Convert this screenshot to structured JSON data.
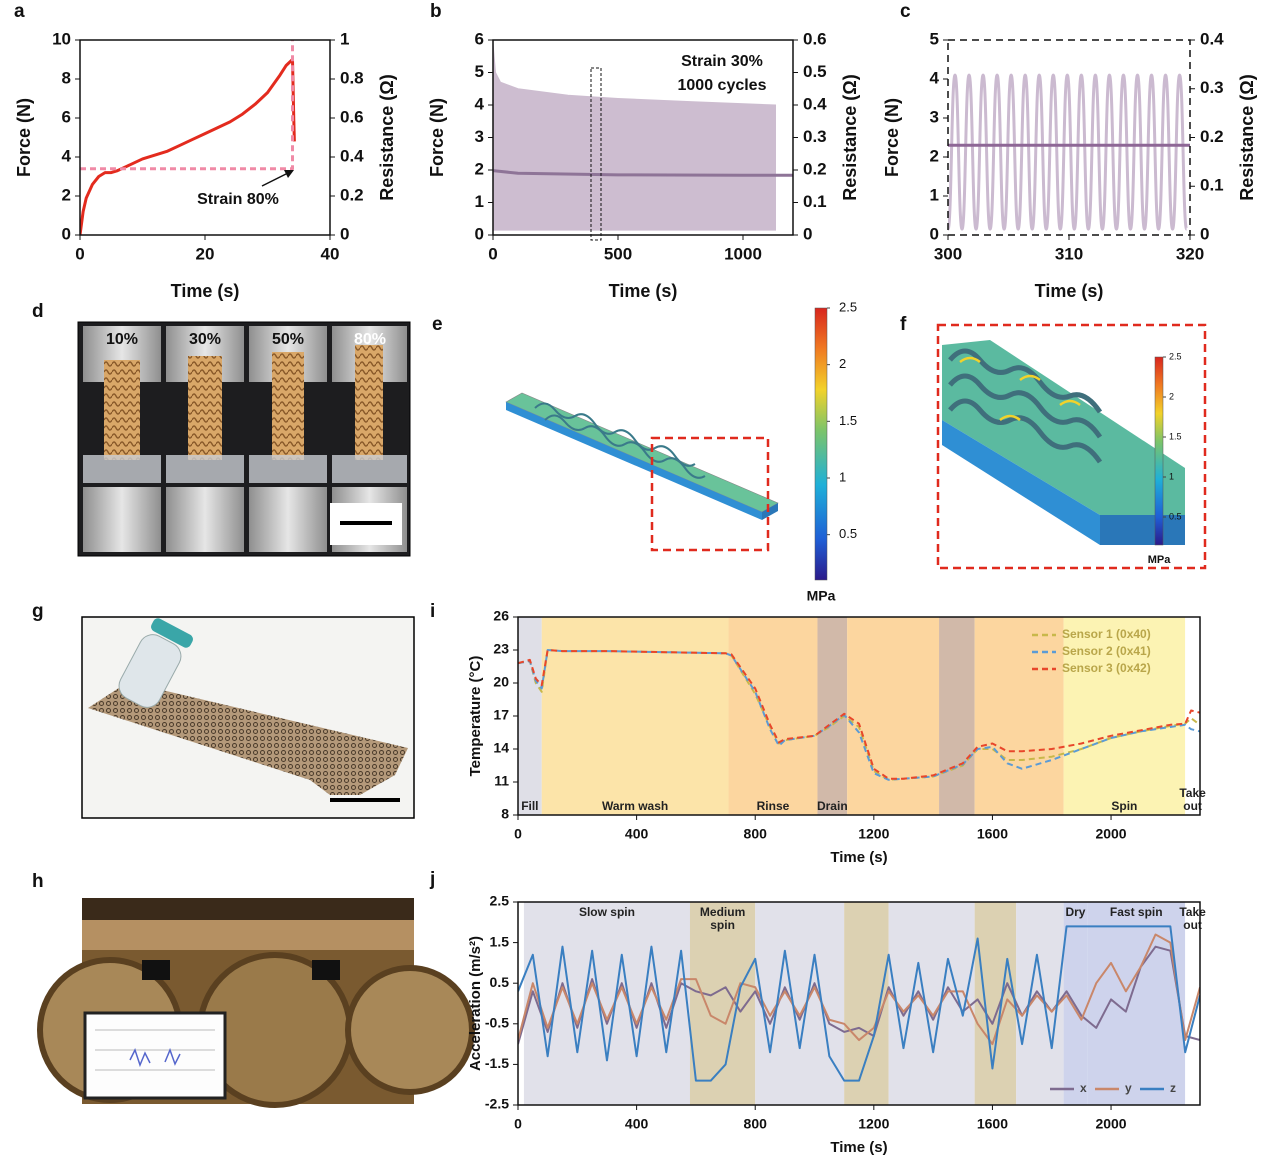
{
  "chart_data": [
    {
      "type": "line",
      "panel": "a",
      "xlabel": "Time (s)",
      "ylabel": "Force (N)",
      "y2label": "Resistance (Ω)",
      "xlim": [
        0,
        40
      ],
      "xticks": [
        0,
        20,
        40
      ],
      "ylim": [
        0,
        10
      ],
      "yticks": [
        0,
        2,
        4,
        6,
        8,
        10
      ],
      "y2lim": [
        0,
        1
      ],
      "y2ticks": [
        0,
        0.2,
        0.4,
        0.6,
        0.8,
        1
      ],
      "series": [
        {
          "color": "#e32b1e",
          "style": "solid",
          "x": [
            0,
            0.5,
            1,
            2,
            3,
            4,
            5,
            6,
            8,
            10,
            12,
            14,
            16,
            18,
            20,
            22,
            24,
            26,
            28,
            30,
            32,
            33,
            34,
            34.2,
            34.3
          ],
          "values": [
            0,
            1.2,
            1.9,
            2.6,
            3.0,
            3.2,
            3.2,
            3.3,
            3.6,
            3.9,
            4.1,
            4.3,
            4.6,
            4.9,
            5.2,
            5.5,
            5.8,
            6.2,
            6.7,
            7.3,
            8.2,
            8.7,
            9.0,
            6.0,
            4.8
          ]
        },
        {
          "color": "#f08aa6",
          "style": "dashed",
          "axis": "y2",
          "x": [
            0,
            34,
            34
          ],
          "values": [
            0.34,
            0.34,
            1.0
          ]
        }
      ],
      "annotations": [
        "Strain 80%"
      ]
    },
    {
      "type": "line",
      "panel": "b",
      "xlabel": "Time (s)",
      "ylabel": "Force (N)",
      "y2label": "Resistance (Ω)",
      "xlim": [
        0,
        1200
      ],
      "xticks": [
        0,
        500,
        1000
      ],
      "ylim": [
        0,
        6
      ],
      "yticks": [
        0,
        1,
        2,
        3,
        4,
        5,
        6
      ],
      "y2lim": [
        0,
        0.6
      ],
      "y2ticks": [
        0,
        0.1,
        0.2,
        0.3,
        0.4,
        0.5,
        0.6
      ],
      "series": [
        {
          "color": "#cdbdd0",
          "style": "band",
          "x": [
            0,
            10,
            30,
            100,
            300,
            500,
            800,
            1130
          ],
          "values": [
            5.9,
            5.0,
            4.7,
            4.5,
            4.3,
            4.2,
            4.1,
            4.0
          ],
          "lower": [
            0.15,
            0.15,
            0.15,
            0.15,
            0.15,
            0.15,
            0.15,
            0.15
          ]
        },
        {
          "color": "#8e7497",
          "style": "solid",
          "axis": "y2",
          "x": [
            0,
            100,
            500,
            1000,
            1200
          ],
          "values": [
            0.198,
            0.19,
            0.185,
            0.184,
            0.184
          ]
        }
      ],
      "annotations": [
        "Strain 30%",
        "1000 cycles"
      ]
    },
    {
      "type": "line",
      "panel": "c",
      "xlabel": "Time (s)",
      "ylabel": "Force (N)",
      "y2label": "Resistance (Ω)",
      "xlim": [
        300,
        320
      ],
      "xticks": [
        300,
        310,
        320
      ],
      "ylim": [
        0,
        5
      ],
      "yticks": [
        0,
        1,
        2,
        3,
        4,
        5
      ],
      "y2lim": [
        0,
        0.4
      ],
      "y2ticks": [
        0,
        0.1,
        0.2,
        0.3,
        0.4
      ],
      "series": [
        {
          "color": "#cbbad0",
          "style": "smooth",
          "x": [
            300,
            300.58,
            301.16,
            301.74,
            302.32,
            302.9,
            303.48,
            304.06,
            304.64,
            305.22,
            305.8,
            306.38,
            306.96,
            307.54,
            308.12,
            308.7,
            309.28,
            309.86,
            310.44,
            311.02,
            311.6,
            312.18,
            312.76,
            313.34,
            313.92,
            314.5,
            315.08,
            315.66,
            316.24,
            316.82,
            317.4,
            317.98,
            318.56,
            319.14,
            319.72
          ],
          "values": [
            0.15,
            4.1,
            0.15,
            4.1,
            0.15,
            4.1,
            0.15,
            4.1,
            0.15,
            4.1,
            0.15,
            4.1,
            0.15,
            4.1,
            0.15,
            4.1,
            0.15,
            4.1,
            0.15,
            4.1,
            0.15,
            4.1,
            0.15,
            4.1,
            0.15,
            4.1,
            0.15,
            4.1,
            0.15,
            4.1,
            0.15,
            4.1,
            0.15,
            4.1,
            0.15
          ]
        },
        {
          "color": "#8e6796",
          "style": "solid",
          "axis": "y2",
          "x": [
            300,
            320
          ],
          "values": [
            0.184,
            0.184
          ]
        }
      ]
    },
    {
      "type": "line",
      "panel": "i",
      "xlabel": "Time (s)",
      "ylabel": "Temperature (°C)",
      "xlim": [
        0,
        2300
      ],
      "xticks": [
        0,
        400,
        800,
        1200,
        1600,
        2000
      ],
      "ylim": [
        8,
        26
      ],
      "yticks": [
        8,
        11,
        14,
        17,
        20,
        23,
        26
      ],
      "legend": "upper right",
      "regions": [
        {
          "start": 0,
          "end": 80,
          "color": "#d9d9e3",
          "label": "Fill"
        },
        {
          "start": 80,
          "end": 710,
          "color": "#fcdf9a",
          "label": "Warm wash"
        },
        {
          "start": 710,
          "end": 1010,
          "color": "#fbcf8e",
          "label": "Rinse"
        },
        {
          "start": 1010,
          "end": 1110,
          "color": "#c9ad9a",
          "label": "Drain"
        },
        {
          "start": 1110,
          "end": 1420,
          "color": "#fbcf8e"
        },
        {
          "start": 1420,
          "end": 1540,
          "color": "#c9ad9a"
        },
        {
          "start": 1540,
          "end": 1840,
          "color": "#fbcf8e"
        },
        {
          "start": 1840,
          "end": 2250,
          "color": "#fbf1a6",
          "label": "Spin"
        },
        {
          "start": 2250,
          "end": 2300,
          "color": "#ffffff",
          "label": "Take out"
        }
      ],
      "x": [
        0,
        40,
        60,
        80,
        100,
        150,
        300,
        500,
        700,
        720,
        800,
        850,
        880,
        900,
        1000,
        1050,
        1100,
        1150,
        1200,
        1250,
        1300,
        1400,
        1500,
        1550,
        1600,
        1650,
        1700,
        1800,
        1900,
        2000,
        2100,
        2200,
        2250,
        2270,
        2300
      ],
      "series": [
        {
          "name": "Sensor 1 (0x40)",
          "color": "#c8b84a",
          "style": "dashed",
          "values": [
            21.8,
            22.0,
            20.0,
            19.2,
            23.0,
            22.9,
            22.9,
            22.8,
            22.7,
            22.5,
            19.0,
            16.0,
            14.5,
            14.8,
            15.2,
            16.0,
            17.0,
            16.0,
            12.0,
            11.2,
            11.3,
            11.5,
            12.5,
            14.0,
            14.0,
            13.0,
            13.0,
            13.3,
            14.0,
            15.0,
            15.6,
            16.1,
            16.3,
            16.8,
            16.2
          ]
        },
        {
          "name": "Sensor 2 (0x41)",
          "color": "#5b9bd5",
          "style": "dashed",
          "values": [
            21.8,
            22.0,
            20.2,
            19.5,
            23.0,
            22.9,
            22.9,
            22.8,
            22.7,
            22.5,
            19.2,
            15.8,
            14.3,
            14.8,
            15.2,
            16.1,
            17.1,
            15.5,
            11.8,
            11.2,
            11.3,
            11.5,
            12.6,
            14.0,
            14.2,
            12.7,
            12.2,
            13.0,
            14.0,
            15.0,
            15.6,
            16.0,
            16.2,
            15.8,
            15.6
          ]
        },
        {
          "name": "Sensor 3 (0x42)",
          "color": "#e8462a",
          "style": "dashed",
          "values": [
            21.8,
            22.1,
            20.4,
            19.8,
            23.0,
            22.9,
            22.9,
            22.8,
            22.7,
            22.6,
            19.5,
            16.2,
            14.6,
            14.9,
            15.2,
            16.2,
            17.2,
            16.3,
            12.2,
            11.3,
            11.3,
            11.6,
            12.7,
            14.2,
            14.5,
            13.8,
            13.8,
            14.0,
            14.5,
            15.2,
            15.7,
            16.2,
            16.3,
            17.5,
            17.3
          ]
        }
      ]
    },
    {
      "type": "line",
      "panel": "j",
      "xlabel": "Time (s)",
      "ylabel": "Acceleration (m/s²)",
      "xlim": [
        0,
        2300
      ],
      "xticks": [
        0,
        400,
        800,
        1200,
        1600,
        2000
      ],
      "ylim": [
        -2.5,
        2.5
      ],
      "yticks": [
        -2.5,
        -1.5,
        -0.5,
        0.5,
        1.5,
        2.5
      ],
      "legend": "lower right",
      "regions": [
        {
          "start": 20,
          "end": 580,
          "color": "#dcdce6",
          "label": "Slow spin"
        },
        {
          "start": 580,
          "end": 800,
          "color": "#d6c9a4",
          "label": "Medium spin"
        },
        {
          "start": 800,
          "end": 1100,
          "color": "#dcdce6"
        },
        {
          "start": 1100,
          "end": 1250,
          "color": "#d6c9a4"
        },
        {
          "start": 1250,
          "end": 1540,
          "color": "#dcdce6"
        },
        {
          "start": 1540,
          "end": 1680,
          "color": "#d6c9a4"
        },
        {
          "start": 1680,
          "end": 1840,
          "color": "#dcdce6"
        },
        {
          "start": 1840,
          "end": 1920,
          "color": "#c5cbe9",
          "label": "Dry"
        },
        {
          "start": 1920,
          "end": 2250,
          "color": "#c5cbe9",
          "label": "Fast spin"
        },
        {
          "start": 2250,
          "end": 2300,
          "color": "#ffffff",
          "label": "Take out"
        }
      ],
      "x": [
        0,
        50,
        100,
        150,
        200,
        250,
        300,
        350,
        400,
        450,
        500,
        550,
        600,
        650,
        700,
        750,
        800,
        850,
        900,
        950,
        1000,
        1050,
        1100,
        1150,
        1200,
        1250,
        1300,
        1350,
        1400,
        1450,
        1500,
        1550,
        1600,
        1650,
        1700,
        1750,
        1800,
        1850,
        1900,
        1950,
        2000,
        2050,
        2100,
        2150,
        2200,
        2250,
        2300
      ],
      "series": [
        {
          "name": "x",
          "color": "#7e6b8f",
          "style": "solid",
          "values": [
            -1.0,
            0.3,
            -0.7,
            0.5,
            -0.6,
            0.6,
            -0.5,
            0.5,
            -0.6,
            0.5,
            -0.6,
            0.5,
            0.3,
            0.2,
            0.4,
            -0.2,
            0.3,
            -0.5,
            0.4,
            -0.4,
            0.5,
            -0.5,
            -0.7,
            -0.6,
            -0.8,
            0.4,
            -0.3,
            0.3,
            -0.4,
            0.4,
            -0.2,
            0.1,
            -0.5,
            0.5,
            -0.3,
            0.3,
            -0.2,
            0.3,
            -0.3,
            -0.6,
            0.1,
            -0.2,
            0.9,
            1.4,
            1.3,
            -0.8,
            -0.9
          ]
        },
        {
          "name": "y",
          "color": "#c9876a",
          "style": "solid",
          "values": [
            -0.9,
            0.5,
            -0.6,
            0.4,
            -0.5,
            0.5,
            -0.4,
            0.4,
            -0.5,
            0.4,
            -0.4,
            0.6,
            0.6,
            -0.3,
            -0.5,
            0.5,
            0.4,
            -0.3,
            0.3,
            -0.3,
            0.4,
            -0.4,
            -0.5,
            -0.9,
            -0.6,
            0.3,
            -0.2,
            0.2,
            -0.3,
            0.3,
            0.3,
            -0.5,
            -1.0,
            0.1,
            -0.3,
            0.2,
            -0.2,
            0.2,
            -0.4,
            0.5,
            1.0,
            0.3,
            0.9,
            1.7,
            1.5,
            -0.9,
            0.4
          ]
        },
        {
          "name": "z",
          "color": "#3a7fc1",
          "style": "solid",
          "values": [
            0.3,
            1.2,
            -1.3,
            1.4,
            -1.2,
            1.3,
            -1.4,
            1.2,
            -1.3,
            1.4,
            -1.2,
            1.3,
            -1.9,
            -1.9,
            -1.5,
            0.4,
            1.1,
            -1.2,
            1.3,
            -1.1,
            1.2,
            -1.3,
            -1.9,
            -1.9,
            -0.8,
            1.2,
            -1.1,
            1.0,
            -1.2,
            1.1,
            -0.3,
            1.6,
            -1.6,
            1.1,
            -1.0,
            1.2,
            -1.1,
            1.9,
            1.9,
            1.9,
            1.9,
            1.9,
            1.9,
            1.9,
            1.9,
            -1.2,
            0.2
          ]
        }
      ]
    }
  ],
  "figure_panels": {
    "d": {
      "letter": "d",
      "strain_labels": [
        "10%",
        "30%",
        "50%",
        "80%"
      ]
    },
    "e": {
      "letter": "e",
      "colorbar_ticks": [
        2.5,
        2,
        1.5,
        1,
        0.5
      ],
      "colorbar_lim": [
        0.1,
        2.5
      ],
      "colorbar_unit": "MPa"
    },
    "f": {
      "letter": "f",
      "colorbar_ticks": [
        2.5,
        2,
        1.5,
        1,
        0.5
      ],
      "colorbar_lim": [
        0.15,
        2.5
      ],
      "colorbar_unit": "MPa"
    },
    "g": {
      "letter": "g"
    },
    "h": {
      "letter": "h"
    }
  }
}
